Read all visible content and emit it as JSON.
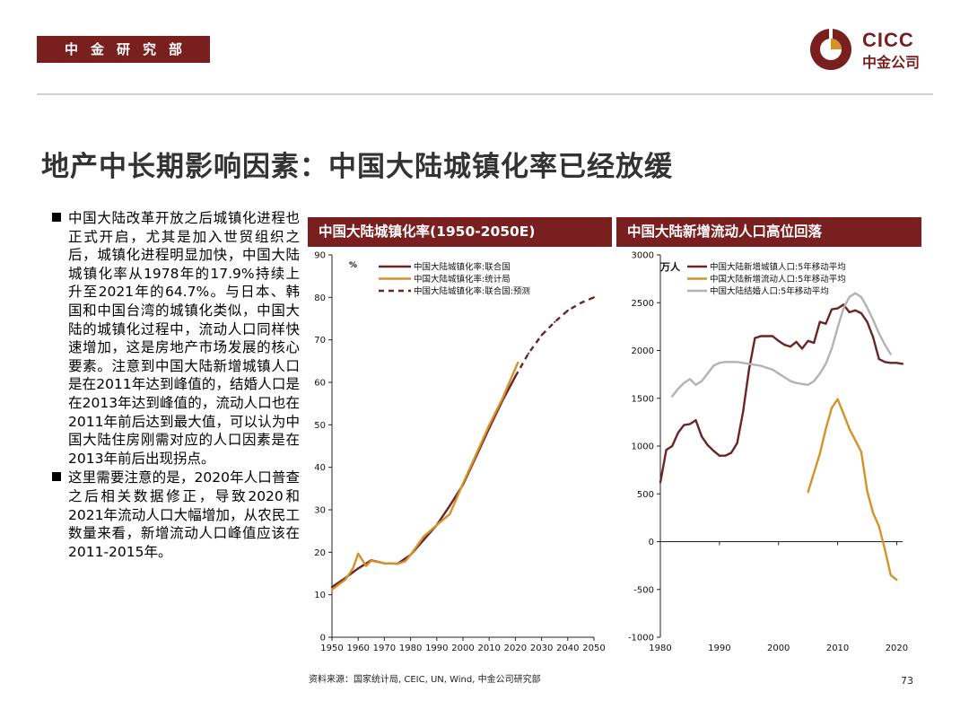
{
  "header": {
    "department": "中金研究部",
    "logo_en": "CICC",
    "logo_cn": "中金公司",
    "brand_color": "#7a1f1f"
  },
  "title": "地产中长期影响因素：中国大陆城镇化率已经放缓",
  "bullets": [
    "中国大陆改革开放之后城镇化进程也正式开启，尤其是加入世贸组织之后，城镇化进程明显加快，中国大陆城镇化率从1978年的17.9%持续上升至2021年的64.7%。与日本、韩国和中国台湾的城镇化类似，中国大陆的城镇化过程中，流动人口同样快速增加，这是房地产市场发展的核心要素。注意到中国大陆新增城镇人口是在2011年达到峰值的，结婚人口是在2013年达到峰值的，流动人口也在2011年前后达到最大值，可以认为中国大陆住房刚需对应的人口因素是在2013年前后出现拐点。",
    "这里需要注意的是，2020年人口普查之后相关数据修正，导致2020和2021年流动人口大幅增加，从农民工数量来看，新增流动人口峰值应该在2011-2015年。"
  ],
  "chart_data": [
    {
      "type": "line",
      "title": "中国大陆城镇化率(1950-2050E)",
      "ylabel": "%",
      "xlim": [
        1950,
        2050
      ],
      "ylim": [
        0,
        90
      ],
      "xticks": [
        1950,
        1960,
        1970,
        1980,
        1990,
        2000,
        2010,
        2020,
        2030,
        2040,
        2050
      ],
      "yticks": [
        0,
        10,
        20,
        30,
        40,
        50,
        60,
        70,
        80,
        90
      ],
      "series": [
        {
          "name": "中国大陆城镇化率:联合国",
          "color": "#6b2424",
          "dash": false,
          "x": [
            1950,
            1955,
            1960,
            1965,
            1970,
            1975,
            1980,
            1985,
            1990,
            1995,
            2000,
            2005,
            2010,
            2015,
            2020
          ],
          "y": [
            11.8,
            13.9,
            16.2,
            18.1,
            17.4,
            17.3,
            19.4,
            22.9,
            26.4,
            31.0,
            35.9,
            42.5,
            49.2,
            55.6,
            61.4
          ]
        },
        {
          "name": "中国大陆城镇化率:统计局",
          "color": "#d4922a",
          "dash": false,
          "x": [
            1950,
            1955,
            1958,
            1960,
            1963,
            1965,
            1970,
            1975,
            1978,
            1980,
            1985,
            1990,
            1995,
            2000,
            2005,
            2010,
            2015,
            2021
          ],
          "y": [
            11.2,
            13.5,
            16.2,
            19.7,
            16.8,
            18.0,
            17.4,
            17.3,
            17.9,
            19.4,
            23.7,
            26.4,
            29.0,
            36.2,
            43.0,
            49.9,
            56.1,
            64.7
          ]
        },
        {
          "name": "中国大陆城镇化率:联合国:预测",
          "color": "#6b2424",
          "dash": true,
          "x": [
            2020,
            2025,
            2030,
            2035,
            2040,
            2045,
            2050
          ],
          "y": [
            61.4,
            66.8,
            71.1,
            74.2,
            76.9,
            78.7,
            80.0
          ]
        }
      ]
    },
    {
      "type": "line",
      "title": "中国大陆新增流动人口高位回落",
      "ylabel": "万人",
      "xlim": [
        1980,
        2021
      ],
      "ylim": [
        -1000,
        3000
      ],
      "xticks": [
        1980,
        1990,
        2000,
        2010,
        2020
      ],
      "yticks": [
        -1000,
        -500,
        0,
        500,
        1000,
        1500,
        2000,
        2500,
        3000
      ],
      "series": [
        {
          "name": "中国大陆新增城镇人口:5年移动平均",
          "color": "#6b2424",
          "x": [
            1980,
            1981,
            1982,
            1983,
            1984,
            1985,
            1986,
            1987,
            1988,
            1989,
            1990,
            1991,
            1992,
            1993,
            1994,
            1995,
            1996,
            1997,
            1998,
            1999,
            2000,
            2001,
            2002,
            2003,
            2004,
            2005,
            2006,
            2007,
            2008,
            2009,
            2010,
            2011,
            2012,
            2013,
            2014,
            2015,
            2016,
            2017,
            2018,
            2019,
            2020,
            2021
          ],
          "y": [
            620,
            960,
            1000,
            1140,
            1220,
            1230,
            1270,
            1100,
            1010,
            950,
            900,
            900,
            930,
            1030,
            1360,
            1800,
            2130,
            2150,
            2150,
            2150,
            2100,
            2060,
            2040,
            2090,
            2020,
            2100,
            2080,
            2300,
            2280,
            2430,
            2440,
            2480,
            2400,
            2420,
            2390,
            2300,
            2140,
            1910,
            1880,
            1870,
            1870,
            1860
          ]
        },
        {
          "name": "中国大陆新增流动人口:5年移动平均",
          "color": "#d4922a",
          "x": [
            2005,
            2006,
            2007,
            2008,
            2009,
            2010,
            2011,
            2012,
            2013,
            2014,
            2015,
            2016,
            2017,
            2018,
            2019,
            2020
          ],
          "y": [
            520,
            720,
            920,
            1180,
            1400,
            1490,
            1340,
            1180,
            1060,
            940,
            530,
            300,
            160,
            -80,
            -350,
            -400
          ]
        },
        {
          "name": "中国大陆结婚人口:5年移动平均",
          "color": "#b3b3b3",
          "x": [
            1982,
            1983,
            1984,
            1985,
            1986,
            1987,
            1988,
            1989,
            1990,
            1991,
            1992,
            1993,
            1994,
            1995,
            1996,
            1997,
            1998,
            1999,
            2000,
            2001,
            2002,
            2003,
            2004,
            2005,
            2006,
            2007,
            2008,
            2009,
            2010,
            2011,
            2012,
            2013,
            2014,
            2015,
            2016,
            2017,
            2018,
            2019
          ],
          "y": [
            1520,
            1600,
            1660,
            1700,
            1640,
            1680,
            1760,
            1840,
            1870,
            1880,
            1880,
            1880,
            1870,
            1860,
            1850,
            1840,
            1820,
            1800,
            1760,
            1720,
            1680,
            1660,
            1650,
            1640,
            1680,
            1760,
            1860,
            2020,
            2240,
            2440,
            2560,
            2600,
            2560,
            2450,
            2320,
            2180,
            2060,
            1960
          ]
        }
      ]
    }
  ],
  "source": "资料来源：国家统计局, CEIC, UN, Wind, 中金公司研究部",
  "page_number": "73"
}
